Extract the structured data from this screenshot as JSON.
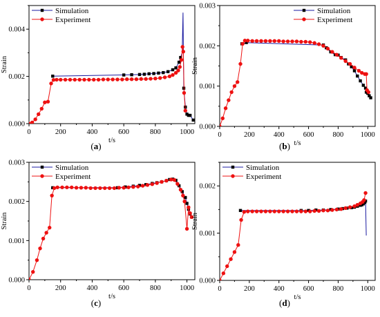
{
  "legend": {
    "simulation": "Simulation",
    "experiment": "Experiment"
  },
  "colors": {
    "simulation": "#1a1aa0",
    "simulation_marker": "#000000",
    "experiment": "#ee1111",
    "axis": "#000000"
  },
  "chart_data": [
    {
      "id": "a",
      "type": "line",
      "panel_label": "(a)",
      "xlabel": "t/s",
      "ylabel": "Strain",
      "xlim": [
        0,
        1050
      ],
      "ylim": [
        0,
        0.005
      ],
      "xticks": [
        0,
        200,
        400,
        600,
        800,
        1000
      ],
      "yticks": [
        0.0,
        0.002,
        0.004
      ],
      "ytick_labels": [
        "0.000",
        "0.002",
        "0.004"
      ],
      "legend_position": "top-left",
      "series": [
        {
          "name": "Simulation",
          "marker": "square",
          "x": [
            150,
            600,
            650,
            700,
            730,
            760,
            790,
            820,
            850,
            880,
            910,
            930,
            950,
            960,
            970,
            975,
            980,
            990,
            1000,
            1010,
            1020,
            1040
          ],
          "y": [
            0.00201,
            0.00206,
            0.00207,
            0.00208,
            0.00209,
            0.00211,
            0.00212,
            0.00214,
            0.00216,
            0.0022,
            0.00228,
            0.00236,
            0.0026,
            0.0028,
            0.003,
            0.0047,
            0.0015,
            0.0007,
            0.0004,
            0.00035,
            0.00035,
            0.00015
          ],
          "show_marker": [
            true,
            true,
            true,
            true,
            true,
            true,
            true,
            true,
            true,
            true,
            true,
            true,
            true,
            true,
            false,
            false,
            true,
            true,
            true,
            true,
            true,
            true
          ]
        },
        {
          "name": "Experiment",
          "marker": "circle",
          "x": [
            0,
            20,
            40,
            60,
            80,
            100,
            120,
            140,
            155,
            175,
            200,
            230,
            260,
            290,
            320,
            350,
            380,
            410,
            440,
            470,
            500,
            530,
            560,
            590,
            620,
            650,
            680,
            710,
            740,
            770,
            800,
            830,
            860,
            890,
            910,
            930,
            945,
            955,
            965,
            972,
            977,
            982,
            990
          ],
          "y": [
            0.0,
            5e-05,
            0.00018,
            0.0004,
            0.00063,
            0.0009,
            0.00093,
            0.0017,
            0.00185,
            0.00186,
            0.00186,
            0.00186,
            0.00186,
            0.00186,
            0.00186,
            0.00186,
            0.00186,
            0.00186,
            0.00186,
            0.00187,
            0.00187,
            0.00187,
            0.00187,
            0.00187,
            0.00188,
            0.00188,
            0.00188,
            0.00189,
            0.00189,
            0.0019,
            0.00191,
            0.00193,
            0.00196,
            0.002,
            0.00206,
            0.00215,
            0.00225,
            0.0024,
            0.0027,
            0.00325,
            0.00305,
            0.0013,
            0.00055
          ]
        }
      ]
    },
    {
      "id": "b",
      "type": "line",
      "panel_label": "(b)",
      "xlabel": "t/s",
      "ylabel": "Strain",
      "xlim": [
        0,
        1050
      ],
      "ylim": [
        0,
        0.003
      ],
      "xticks": [
        0,
        200,
        400,
        600,
        800,
        1000
      ],
      "yticks": [
        0.0,
        0.001,
        0.002,
        0.003
      ],
      "ytick_labels": [
        "0.000",
        "0.001",
        "0.002",
        "0.003"
      ],
      "legend_position": "top-right",
      "series": [
        {
          "name": "Simulation",
          "marker": "square",
          "x": [
            150,
            180,
            700,
            720,
            750,
            780,
            800,
            820,
            850,
            870,
            890,
            910,
            930,
            950,
            970,
            985,
            990,
            1000,
            1010,
            1020
          ],
          "y": [
            0.00205,
            0.00208,
            0.00202,
            0.00195,
            0.00185,
            0.00178,
            0.00177,
            0.00171,
            0.00165,
            0.00155,
            0.00148,
            0.00138,
            0.00125,
            0.00113,
            0.00102,
            0.00095,
            0.00085,
            0.00082,
            0.00076,
            0.00071
          ]
        },
        {
          "name": "Experiment",
          "marker": "circle",
          "x": [
            0,
            20,
            40,
            60,
            80,
            100,
            120,
            140,
            155,
            170,
            190,
            220,
            250,
            280,
            310,
            340,
            370,
            400,
            430,
            460,
            490,
            520,
            550,
            580,
            610,
            640,
            670,
            700,
            730,
            760,
            790,
            820,
            850,
            880,
            910,
            940,
            960,
            980,
            990,
            995,
            1005
          ],
          "y": [
            0.0,
            0.0002,
            0.00045,
            0.00065,
            0.00085,
            0.001,
            0.0011,
            0.00155,
            0.00205,
            0.00213,
            0.00213,
            0.00212,
            0.00212,
            0.00212,
            0.00212,
            0.00212,
            0.00212,
            0.00212,
            0.00211,
            0.00211,
            0.00211,
            0.00211,
            0.0021,
            0.0021,
            0.00209,
            0.00207,
            0.00204,
            0.002,
            0.00193,
            0.00185,
            0.00178,
            0.0017,
            0.00162,
            0.00155,
            0.00146,
            0.00138,
            0.00133,
            0.0013,
            0.0013,
            0.0009,
            0.00085
          ]
        }
      ]
    },
    {
      "id": "c",
      "type": "line",
      "panel_label": "(c)",
      "xlabel": "t/s",
      "ylabel": "Strain",
      "xlim": [
        0,
        1050
      ],
      "ylim": [
        0,
        0.003
      ],
      "xticks": [
        0,
        200,
        400,
        600,
        800,
        1000
      ],
      "yticks": [
        0.0,
        0.001,
        0.002,
        0.003
      ],
      "ytick_labels": [
        "0.000",
        "0.001",
        "0.002",
        "0.003"
      ],
      "legend_position": "top-left",
      "series": [
        {
          "name": "Simulation",
          "marker": "square",
          "x": [
            150,
            560,
            610,
            660,
            700,
            740,
            780,
            810,
            840,
            870,
            890,
            910,
            930,
            950,
            970,
            990,
            1000,
            1010,
            1020,
            1030
          ],
          "y": [
            0.00235,
            0.00235,
            0.00237,
            0.00239,
            0.00241,
            0.00243,
            0.00246,
            0.00248,
            0.0025,
            0.00253,
            0.00256,
            0.00257,
            0.00254,
            0.0024,
            0.00225,
            0.0021,
            0.00195,
            0.0018,
            0.00168,
            0.0016
          ]
        },
        {
          "name": "Experiment",
          "marker": "circle",
          "x": [
            0,
            25,
            50,
            70,
            90,
            110,
            130,
            145,
            160,
            180,
            210,
            240,
            270,
            300,
            330,
            360,
            390,
            420,
            450,
            480,
            510,
            540,
            570,
            600,
            630,
            660,
            690,
            720,
            750,
            780,
            810,
            840,
            870,
            900,
            920,
            940,
            960,
            975,
            985,
            1000,
            1010,
            1020,
            1030
          ],
          "y": [
            0.0,
            0.0002,
            0.0005,
            0.0008,
            0.00105,
            0.0012,
            0.00133,
            0.00215,
            0.00234,
            0.00236,
            0.00236,
            0.00236,
            0.00236,
            0.00235,
            0.00235,
            0.00235,
            0.00234,
            0.00234,
            0.00234,
            0.00234,
            0.00234,
            0.00234,
            0.00235,
            0.00235,
            0.00236,
            0.00237,
            0.00238,
            0.0024,
            0.00242,
            0.00244,
            0.00247,
            0.0025,
            0.00253,
            0.00256,
            0.00255,
            0.00245,
            0.0023,
            0.00215,
            0.002,
            0.0013,
            0.00185,
            0.0017,
            0.0016
          ]
        }
      ]
    },
    {
      "id": "d",
      "type": "line",
      "panel_label": "(d)",
      "xlabel": "t/s",
      "ylabel": "Strain",
      "xlim": [
        0,
        1050
      ],
      "ylim": [
        0,
        0.0025
      ],
      "xticks": [
        0,
        200,
        400,
        600,
        800,
        1000
      ],
      "yticks": [
        0.0,
        0.001,
        0.002
      ],
      "ytick_labels": [
        "0.000",
        "0.001",
        "0.002"
      ],
      "legend_position": "top-left",
      "series": [
        {
          "name": "Simulation",
          "marker": "square",
          "x": [
            140,
            550,
            600,
            650,
            700,
            750,
            800,
            830,
            860,
            890,
            910,
            930,
            950,
            960,
            970,
            980,
            985,
            990
          ],
          "y": [
            0.00148,
            0.00148,
            0.00148,
            0.00149,
            0.00149,
            0.0015,
            0.00151,
            0.00152,
            0.00153,
            0.00154,
            0.00155,
            0.00157,
            0.00159,
            0.0016,
            0.00162,
            0.00165,
            0.00168,
            0.00095
          ],
          "show_marker": [
            true,
            true,
            true,
            true,
            true,
            true,
            true,
            true,
            true,
            true,
            true,
            true,
            true,
            true,
            true,
            true,
            true,
            false
          ]
        },
        {
          "name": "Experiment",
          "marker": "circle",
          "x": [
            0,
            25,
            50,
            75,
            100,
            125,
            145,
            165,
            190,
            220,
            250,
            280,
            310,
            340,
            370,
            400,
            430,
            460,
            490,
            520,
            550,
            580,
            610,
            640,
            670,
            700,
            730,
            760,
            790,
            820,
            850,
            880,
            910,
            930,
            950,
            965,
            975,
            985
          ],
          "y": [
            0.0,
            0.00015,
            0.0003,
            0.00045,
            0.0006,
            0.00075,
            0.00128,
            0.00145,
            0.00146,
            0.00146,
            0.00146,
            0.00146,
            0.00146,
            0.00146,
            0.00146,
            0.00146,
            0.00146,
            0.00146,
            0.00146,
            0.00146,
            0.00146,
            0.00146,
            0.00146,
            0.00147,
            0.00147,
            0.00148,
            0.00148,
            0.00149,
            0.0015,
            0.00151,
            0.00153,
            0.00155,
            0.00157,
            0.0016,
            0.00163,
            0.00166,
            0.0017,
            0.00185
          ]
        }
      ]
    }
  ]
}
